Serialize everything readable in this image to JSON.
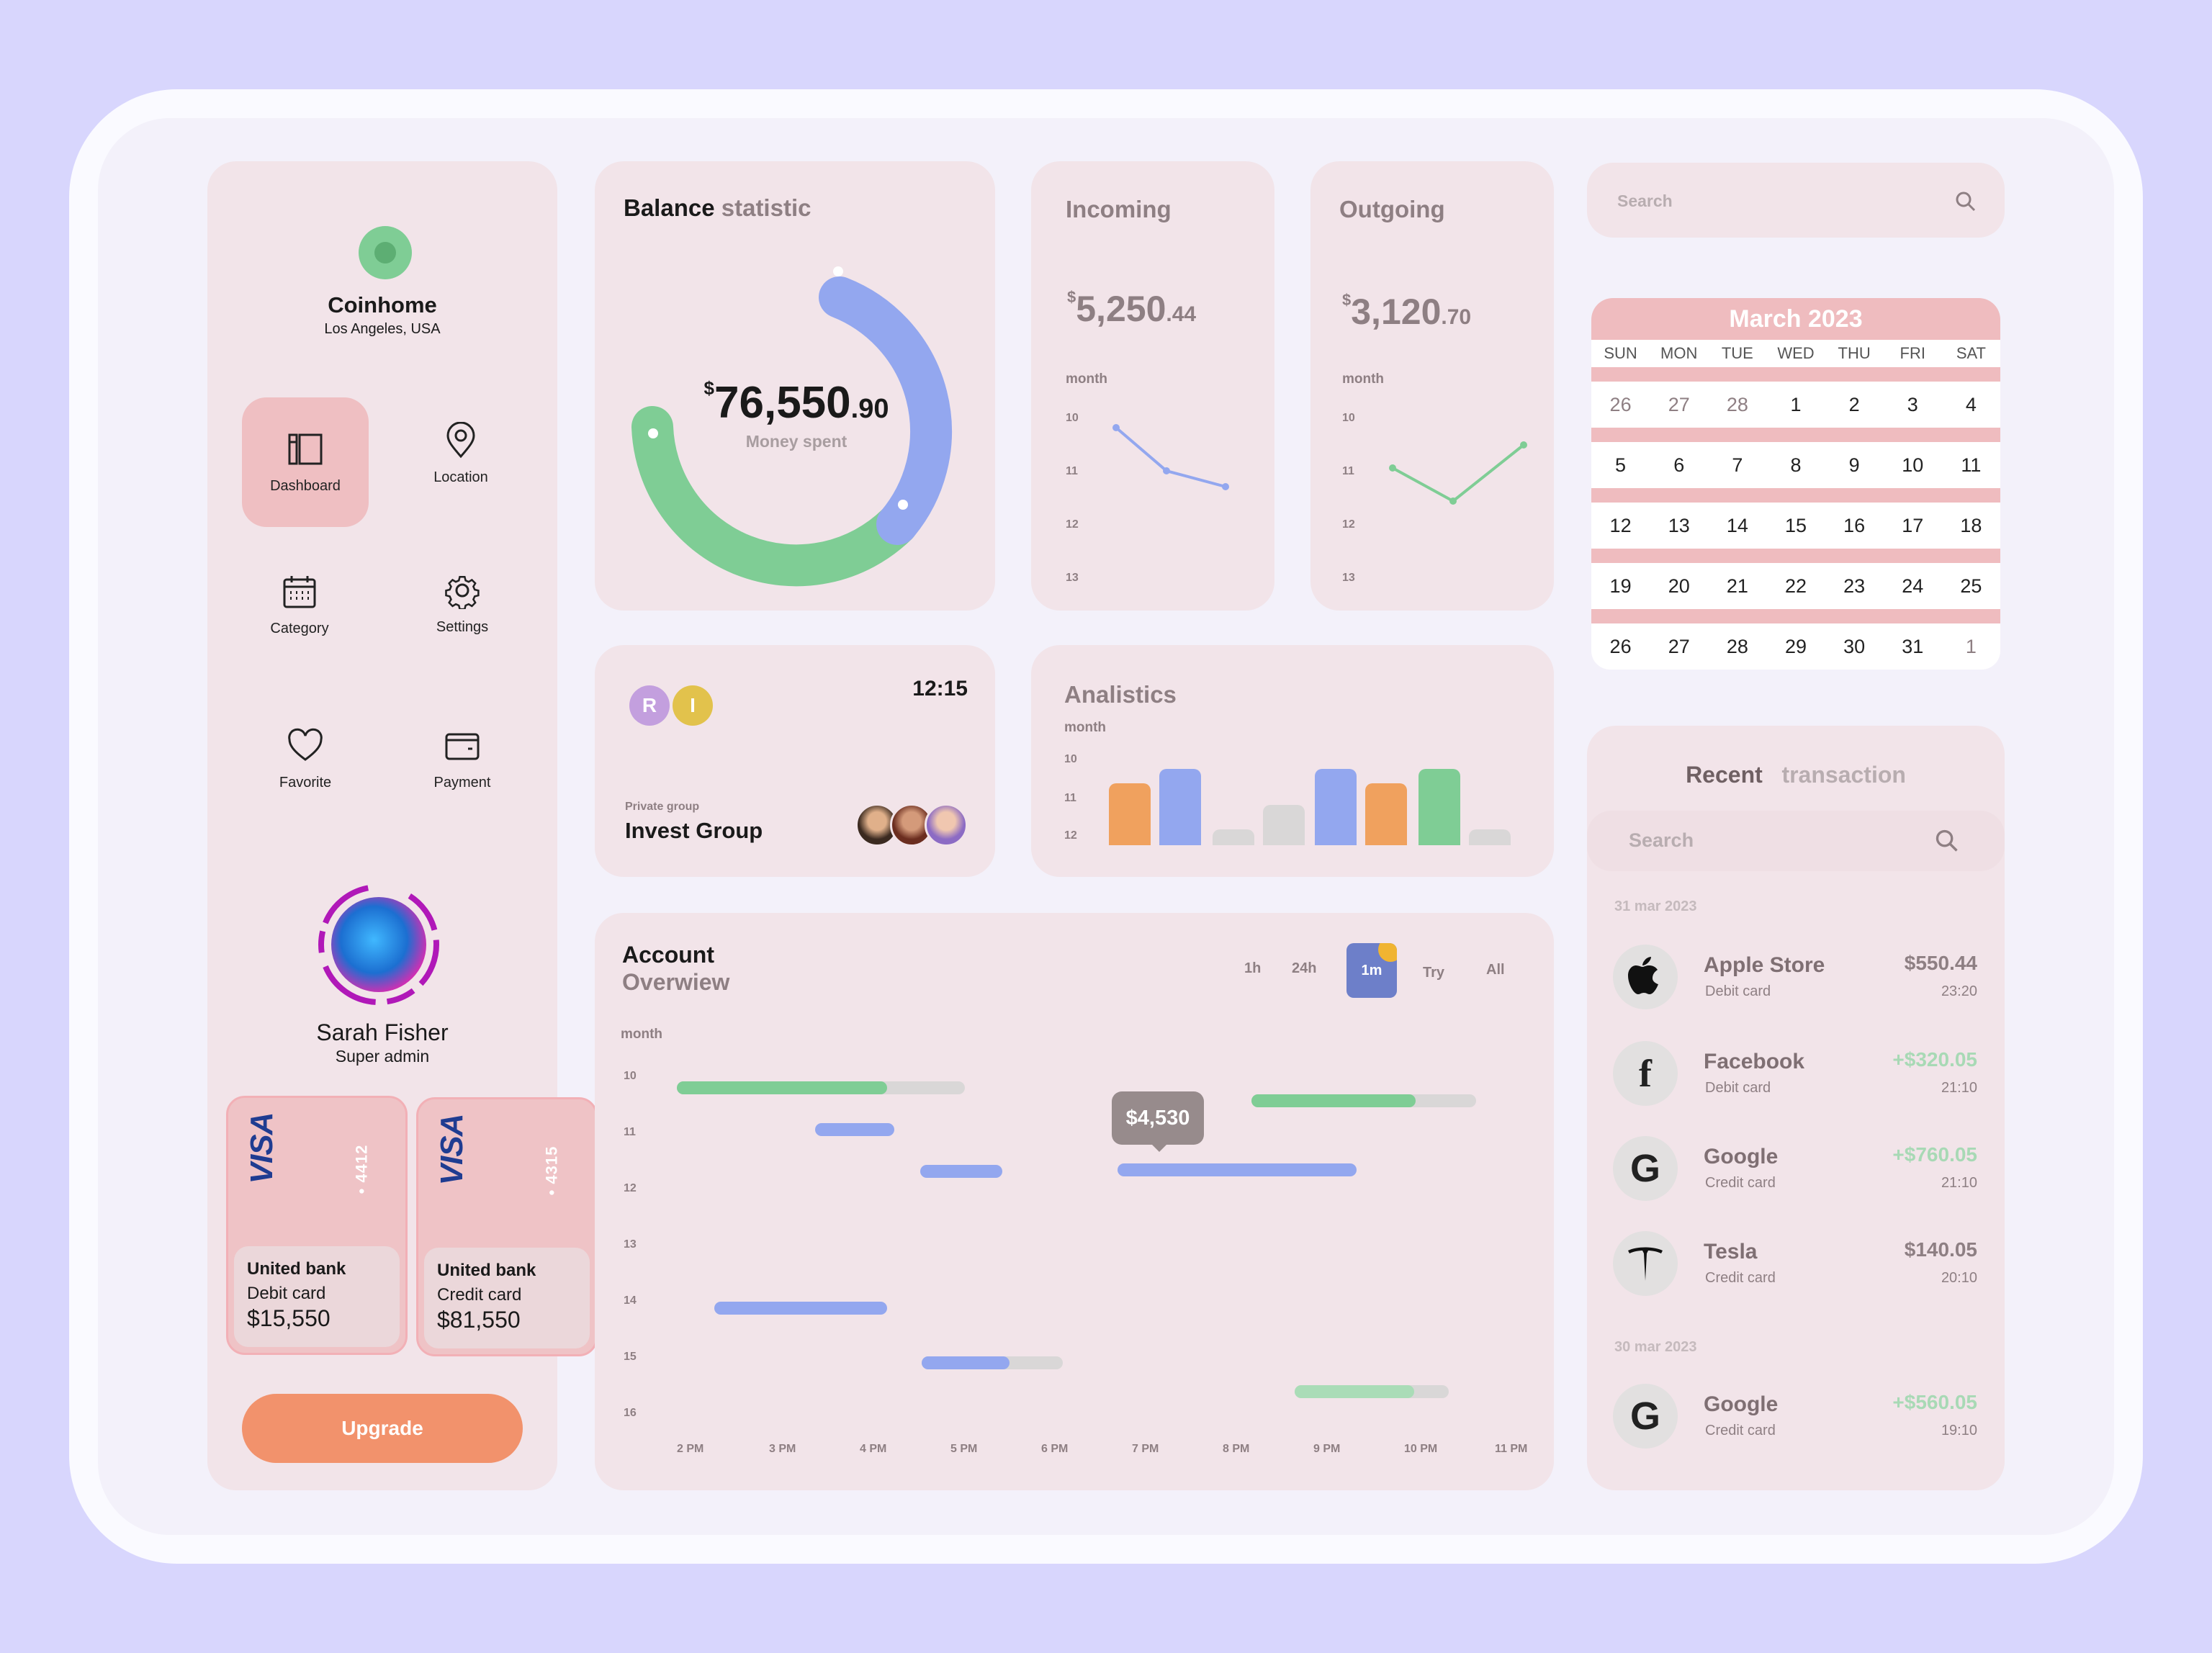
{
  "brand": {
    "name": "Coinhome",
    "location": "Los Angeles, USA"
  },
  "nav": [
    {
      "label": "Dashboard",
      "icon": "dashboard-icon",
      "active": true
    },
    {
      "label": "Location",
      "icon": "location-pin-icon"
    },
    {
      "label": "Category",
      "icon": "calendar-icon"
    },
    {
      "label": "Settings",
      "icon": "gear-icon"
    },
    {
      "label": "Favorite",
      "icon": "heart-icon"
    },
    {
      "label": "Payment",
      "icon": "wallet-icon"
    }
  ],
  "user": {
    "name": "Sarah Fisher",
    "role": "Super admin"
  },
  "cards": [
    {
      "brand": "VISA",
      "last4": "• 4412",
      "bank": "United bank",
      "type": "Debit card",
      "amount": "$15,550"
    },
    {
      "brand": "VISA",
      "last4": "• 4315",
      "bank": "United bank",
      "type": "Credit card",
      "amount": "$81,550"
    }
  ],
  "upgrade_label": "Upgrade",
  "balance": {
    "title_strong": "Balance",
    "title_light": "statistic",
    "currency": "$",
    "amount_int": "76,550",
    "amount_dec": ".90",
    "caption": "Money spent"
  },
  "incoming": {
    "title": "Incoming",
    "currency": "$",
    "int": "5,250",
    "dec": ".44",
    "axis_label": "month",
    "ticks": [
      "10",
      "11",
      "12",
      "13"
    ]
  },
  "outgoing": {
    "title": "Outgoing",
    "currency": "$",
    "int": "3,120",
    "dec": ".70",
    "axis_label": "month",
    "ticks": [
      "10",
      "11",
      "12",
      "13"
    ]
  },
  "group": {
    "time": "12:15",
    "badges": [
      "R",
      "I"
    ],
    "caption": "Private group",
    "name": "Invest Group"
  },
  "analytics": {
    "title": "Analistics",
    "axis_label": "month",
    "ticks": [
      "10",
      "11",
      "12"
    ]
  },
  "account": {
    "title": "Account",
    "subtitle": "Overwiew",
    "axis_label": "month",
    "timeframes": [
      "1h",
      "24h",
      "1m",
      "Try",
      "All"
    ],
    "active_timeframe": "1m",
    "tooltip": "$4,530",
    "y_ticks": [
      "10",
      "11",
      "12",
      "13",
      "14",
      "15",
      "16"
    ],
    "x_ticks": [
      "2 PM",
      "3 PM",
      "4 PM",
      "5 PM",
      "6 PM",
      "7 PM",
      "8 PM",
      "9 PM",
      "10 PM",
      "11 PM"
    ]
  },
  "search": {
    "placeholder": "Search"
  },
  "calendar": {
    "title": "March 2023",
    "weekdays": [
      "SUN",
      "MON",
      "TUE",
      "WED",
      "THU",
      "FRI",
      "SAT"
    ],
    "weeks": [
      [
        "26",
        "27",
        "28",
        "1",
        "2",
        "3",
        "4"
      ],
      [
        "5",
        "6",
        "7",
        "8",
        "9",
        "10",
        "11"
      ],
      [
        "12",
        "13",
        "14",
        "15",
        "16",
        "17",
        "18"
      ],
      [
        "19",
        "20",
        "21",
        "22",
        "23",
        "24",
        "25"
      ],
      [
        "26",
        "27",
        "28",
        "29",
        "30",
        "31",
        "1"
      ]
    ]
  },
  "transactions": {
    "title_strong": "Recent",
    "title_light": "transaction",
    "search_placeholder": "Search",
    "groups": [
      {
        "date": "31 mar 2023",
        "items": [
          {
            "name": "Apple Store",
            "method": "Debit card",
            "amount": "$550.44",
            "time": "23:20",
            "icon": "apple-icon"
          },
          {
            "name": "Facebook",
            "method": "Debit card",
            "amount": "+$320.05",
            "time": "21:10",
            "icon": "facebook-icon"
          },
          {
            "name": "Google",
            "method": "Credit card",
            "amount": "+$760.05",
            "time": "21:10",
            "icon": "google-icon"
          },
          {
            "name": "Tesla",
            "method": "Credit card",
            "amount": "$140.05",
            "time": "20:10",
            "icon": "tesla-icon"
          }
        ]
      },
      {
        "date": "30 mar 2023",
        "items": [
          {
            "name": "Google",
            "method": "Credit card",
            "amount": "+$560.05",
            "time": "19:10",
            "icon": "google-icon"
          }
        ]
      }
    ]
  },
  "colors": {
    "green": "#7fcd95",
    "blue": "#93a7ef",
    "orange": "#f0a15e",
    "pink": "#efbcbf",
    "gray": "#d9d7d7"
  }
}
